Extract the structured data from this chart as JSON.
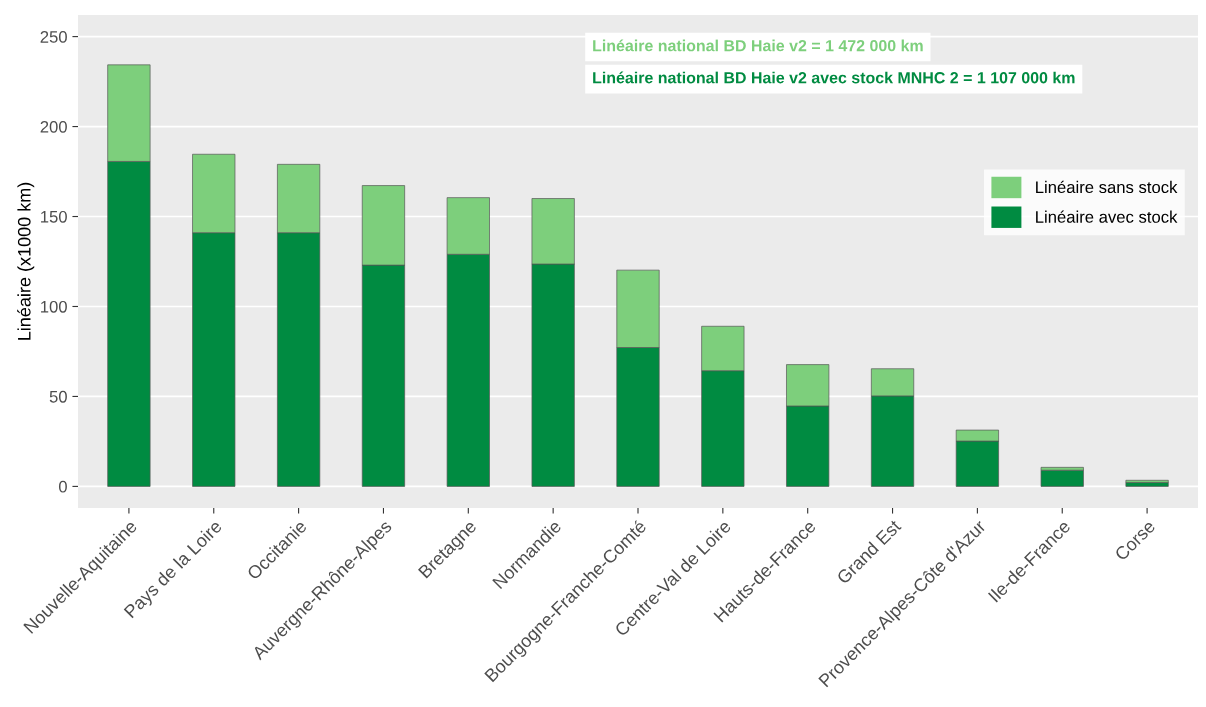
{
  "chart_data": {
    "type": "bar",
    "stacked": true,
    "ylabel": "Linéaire (x1000 km)",
    "categories": [
      "Nouvelle-Aquitaine",
      "Pays de la Loire",
      "Occitanie",
      "Auvergne-Rhône-Alpes",
      "Bretagne",
      "Normandie",
      "Bourgogne-Franche-Comté",
      "Centre-Val de Loire",
      "Hauts-de-France",
      "Grand Est",
      "Provence-Alpes-Côte d'Azur",
      "Ile-de-France",
      "Corse"
    ],
    "series": [
      {
        "name": "Linéaire avec stock",
        "color": "#008b41",
        "values": [
          180.6,
          141,
          141,
          123,
          129,
          123.6,
          77.2,
          64.3,
          44.7,
          50.3,
          25.2,
          9,
          2.2
        ]
      },
      {
        "name": "Linéaire sans stock",
        "color": "#7dcf7c",
        "values": [
          53.7,
          43.6,
          38,
          44.2,
          31.5,
          36.4,
          43,
          24.7,
          23,
          15.1,
          6.1,
          1.6,
          1.2
        ]
      }
    ],
    "ylim": [
      -12,
      262
    ],
    "yticks": [
      0,
      50,
      100,
      150,
      200,
      250
    ],
    "grid": "y",
    "legend": "right",
    "annotations": [
      "Linéaire national BD Haie v2 = 1 472 000 km",
      "Linéaire national BD Haie v2 avec stock MNHC 2 = 1 107 000 km"
    ]
  }
}
